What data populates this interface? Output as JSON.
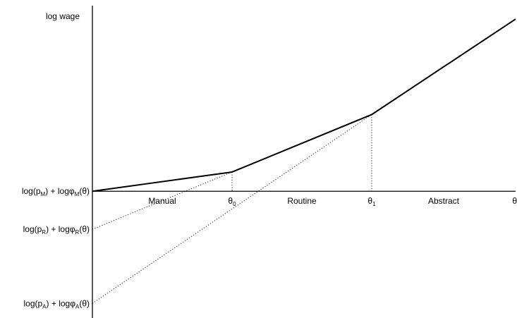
{
  "chart_data": {
    "type": "line",
    "ylabel": "log wage",
    "xlabel": "θ",
    "xlim": [
      0,
      10
    ],
    "ylim": [
      -6.33,
      9.27
    ],
    "regions": [
      "Manual",
      "Routine",
      "Abstract"
    ],
    "thresholds": [
      {
        "label": "θ",
        "sub": "0",
        "x": 3.3
      },
      {
        "label": "θ",
        "sub": "1",
        "x": 6.6
      }
    ],
    "intercepts": [
      {
        "sector": "M",
        "y": 0
      },
      {
        "sector": "R",
        "y": -1.9
      },
      {
        "sector": "A",
        "y": -5.6
      }
    ],
    "series": [
      {
        "x": [
          0,
          3.3
        ],
        "y": [
          0,
          0.96
        ]
      },
      {
        "x": [
          3.3,
          6.6
        ],
        "y": [
          0.96,
          3.83
        ]
      },
      {
        "x": [
          6.6,
          10
        ],
        "y": [
          3.83,
          8.6
        ]
      }
    ],
    "upper_envelope": {
      "x": [
        0,
        3.3,
        6.6,
        10
      ],
      "y": [
        0,
        0.96,
        3.83,
        8.6
      ]
    },
    "grid": false
  }
}
